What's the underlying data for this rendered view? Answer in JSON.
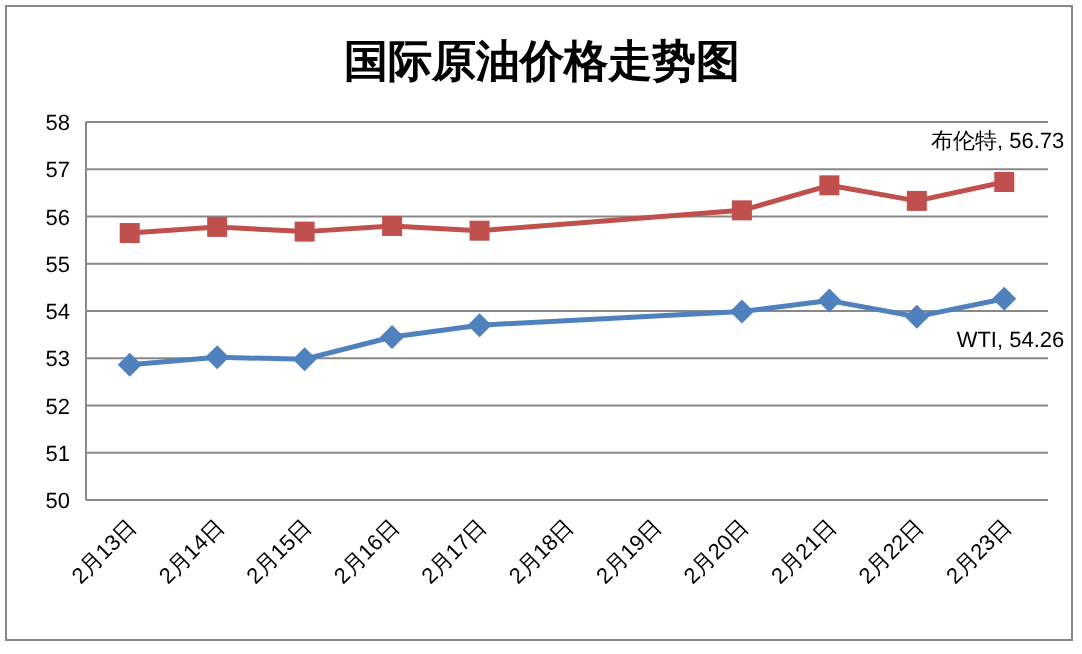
{
  "chart_data": {
    "type": "line",
    "title": "国际原油价格走势图",
    "categories": [
      "2月13日",
      "2月14日",
      "2月15日",
      "2月16日",
      "2月17日",
      "2月18日",
      "2月19日",
      "2月20日",
      "2月21日",
      "2月22日",
      "2月23日"
    ],
    "series": [
      {
        "color": "#c0504d",
        "marker": "square",
        "values": [
          55.65,
          55.78,
          55.68,
          55.8,
          55.7,
          null,
          null,
          56.13,
          56.66,
          56.33,
          56.73
        ],
        "value_labels": [
          null,
          null,
          null,
          null,
          null,
          null,
          null,
          null,
          null,
          null,
          "布伦特, 56.73"
        ]
      },
      {
        "color": "#4f81bd",
        "marker": "diamond",
        "values": [
          52.86,
          53.02,
          52.98,
          53.45,
          53.7,
          null,
          null,
          53.99,
          54.22,
          53.88,
          54.26
        ],
        "value_labels": [
          null,
          null,
          null,
          null,
          null,
          null,
          null,
          null,
          null,
          null,
          "WTI, 54.26"
        ]
      }
    ],
    "ylim": [
      50,
      58
    ],
    "yticks": [
      50,
      51,
      52,
      53,
      54,
      55,
      56,
      57,
      58
    ],
    "grid": "y"
  }
}
